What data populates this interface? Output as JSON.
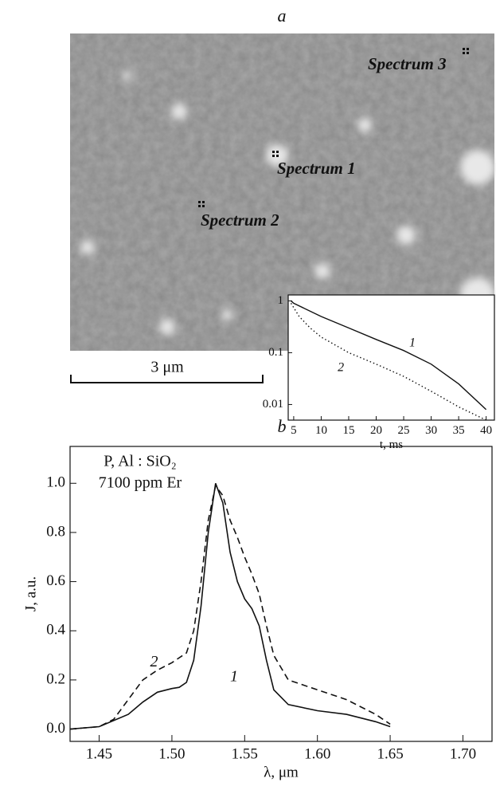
{
  "image": {
    "panel_label": "a",
    "spots": [
      "Spectrum 1",
      "Spectrum 2",
      "Spectrum 3"
    ],
    "scale_bar": "3 μm"
  },
  "chart_data": [
    {
      "type": "line",
      "title": "b",
      "xlabel": "λ, μm",
      "ylabel": "J, a.u.",
      "annotations": [
        "P, Al : SiO₂",
        "7100 ppm Er"
      ],
      "xlim": [
        1.43,
        1.72
      ],
      "ylim": [
        -0.05,
        1.15
      ],
      "xticks": [
        1.45,
        {
          "value": 1.5,
          "label": "1.50"
        },
        1.55,
        {
          "value": 1.6,
          "label": "1.60"
        },
        1.65,
        {
          "value": 1.7,
          "label": "1.70"
        }
      ],
      "yticks": [
        {
          "value": 0,
          "label": "0.0"
        },
        0.2,
        0.4,
        0.6,
        0.8,
        {
          "value": 1,
          "label": "1.0"
        }
      ],
      "series": [
        {
          "name": "1",
          "color": "#111111",
          "dash": false,
          "x": [
            1.43,
            1.45,
            1.47,
            1.48,
            1.49,
            1.5,
            1.505,
            1.51,
            1.515,
            1.52,
            1.525,
            1.53,
            1.535,
            1.54,
            1.545,
            1.55,
            1.555,
            1.56,
            1.565,
            1.57,
            1.58,
            1.6,
            1.62,
            1.64,
            1.65
          ],
          "values": [
            0.0,
            0.01,
            0.06,
            0.11,
            0.15,
            0.165,
            0.17,
            0.19,
            0.28,
            0.5,
            0.8,
            1.0,
            0.92,
            0.72,
            0.6,
            0.53,
            0.49,
            0.42,
            0.28,
            0.16,
            0.1,
            0.075,
            0.06,
            0.03,
            0.01
          ]
        },
        {
          "name": "2",
          "color": "#111111",
          "dash": true,
          "x": [
            1.43,
            1.45,
            1.46,
            1.47,
            1.48,
            1.49,
            1.5,
            1.51,
            1.515,
            1.52,
            1.525,
            1.53,
            1.535,
            1.54,
            1.545,
            1.55,
            1.555,
            1.56,
            1.565,
            1.57,
            1.58,
            1.6,
            1.62,
            1.64,
            1.65
          ],
          "values": [
            0.0,
            0.01,
            0.04,
            0.12,
            0.2,
            0.24,
            0.27,
            0.31,
            0.4,
            0.6,
            0.85,
            0.99,
            0.95,
            0.85,
            0.78,
            0.7,
            0.63,
            0.55,
            0.42,
            0.3,
            0.2,
            0.16,
            0.12,
            0.06,
            0.02
          ]
        }
      ]
    },
    {
      "type": "line",
      "xlabel": "t, ms",
      "log_y": true,
      "xlim": [
        4,
        41.5
      ],
      "ylim": [
        0.005,
        1.3
      ],
      "xticks": [
        5,
        10,
        15,
        20,
        25,
        30,
        35,
        40
      ],
      "yticks": [
        1,
        0.1,
        0.01
      ],
      "series": [
        {
          "name": "1",
          "color": "#111111",
          "dash": false,
          "x": [
            4.5,
            5,
            10,
            15,
            20,
            25,
            30,
            35,
            40
          ],
          "values": [
            1,
            0.9,
            0.5,
            0.3,
            0.18,
            0.11,
            0.06,
            0.025,
            0.008
          ]
        },
        {
          "name": "2",
          "color": "#111111",
          "dash": true,
          "x": [
            4.5,
            6,
            8,
            10,
            15,
            20,
            25,
            30,
            35,
            40
          ],
          "values": [
            0.9,
            0.5,
            0.3,
            0.2,
            0.1,
            0.06,
            0.035,
            0.018,
            0.009,
            0.005
          ]
        }
      ]
    }
  ]
}
